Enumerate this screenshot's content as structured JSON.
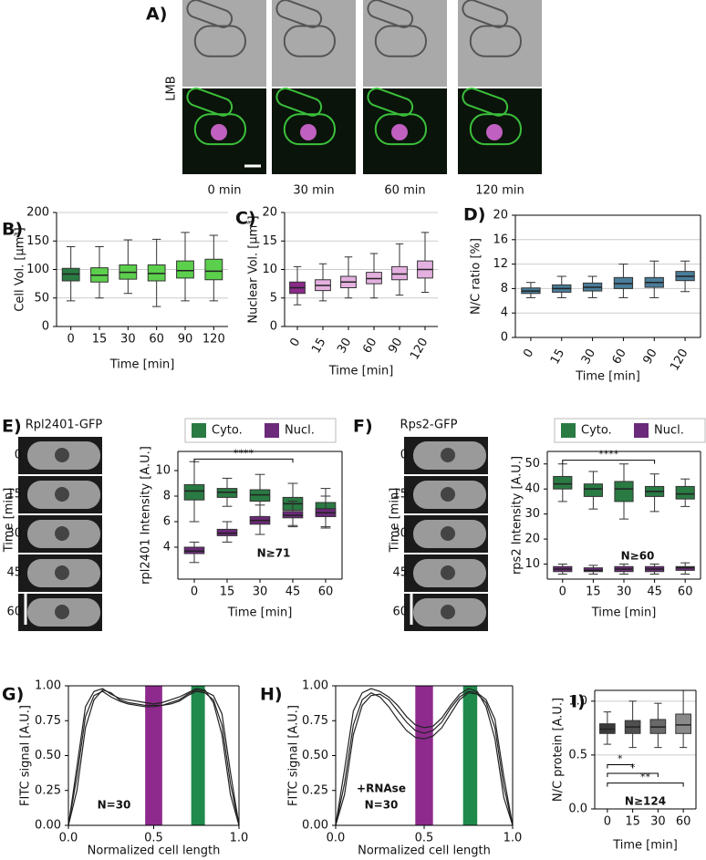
{
  "images": {
    "A": {
      "label": "A)",
      "side": "LMB",
      "times": [
        "0 min",
        "30 min",
        "60 min",
        "120 min"
      ]
    },
    "E": {
      "label": "E)",
      "title": "Rpl2401-GFP",
      "axis": "Time [min]",
      "times": [
        "0",
        "15",
        "30",
        "45",
        "60"
      ]
    },
    "F": {
      "label": "F)",
      "title": "Rps2-GFP",
      "axis": "Time [min]",
      "times": [
        "0",
        "15",
        "30",
        "45",
        "60"
      ]
    }
  },
  "chart_data": [
    {
      "type": "box",
      "panel": "B)",
      "ylabel": "Cell Vol. [μm³]",
      "xlabel": "Time [min]",
      "frame": false,
      "grid": true,
      "categories": [
        "0",
        "15",
        "30",
        "60",
        "90",
        "120"
      ],
      "ylim": [
        0,
        200
      ],
      "yticks": [
        0,
        50,
        100,
        150,
        200
      ],
      "series": [
        {
          "colors": [
            "#2a7a43",
            "#5ccf4c",
            "#5ccf4c",
            "#5ccf4c",
            "#5ccf4c",
            "#5ccf4c"
          ],
          "boxes": [
            {
              "min": 45,
              "q1": 80,
              "median": 92,
              "q3": 102,
              "max": 140
            },
            {
              "min": 50,
              "q1": 78,
              "median": 90,
              "q3": 103,
              "max": 140
            },
            {
              "min": 58,
              "q1": 83,
              "median": 95,
              "q3": 108,
              "max": 152
            },
            {
              "min": 35,
              "q1": 80,
              "median": 93,
              "q3": 108,
              "max": 153
            },
            {
              "min": 45,
              "q1": 85,
              "median": 98,
              "q3": 115,
              "max": 165
            },
            {
              "min": 45,
              "q1": 82,
              "median": 97,
              "q3": 118,
              "max": 160
            }
          ]
        }
      ]
    },
    {
      "type": "box",
      "panel": "C)",
      "ylabel": "Nuclear Vol. [μm³]",
      "xlabel": "Time [min]",
      "frame": false,
      "grid": true,
      "xtick_rotation": -60,
      "categories": [
        "0",
        "15",
        "30",
        "60",
        "90",
        "120"
      ],
      "ylim": [
        0,
        20
      ],
      "yticks": [
        0,
        5,
        10,
        15,
        20
      ],
      "series": [
        {
          "colors": [
            "#8b2a8b",
            "#e4b0e0",
            "#e4b0e0",
            "#e4b0e0",
            "#e4b0e0",
            "#e4b0e0"
          ],
          "boxes": [
            {
              "min": 3.8,
              "q1": 5.8,
              "median": 6.8,
              "q3": 7.8,
              "max": 10.5
            },
            {
              "min": 4.5,
              "q1": 6.3,
              "median": 7.2,
              "q3": 8.2,
              "max": 11
            },
            {
              "min": 5,
              "q1": 6.8,
              "median": 7.8,
              "q3": 8.8,
              "max": 12.2
            },
            {
              "min": 5,
              "q1": 7.5,
              "median": 8.4,
              "q3": 9.5,
              "max": 12.8
            },
            {
              "min": 5.5,
              "q1": 8.2,
              "median": 9.2,
              "q3": 10.5,
              "max": 14.5
            },
            {
              "min": 6,
              "q1": 8.5,
              "median": 10,
              "q3": 11.5,
              "max": 16.5
            }
          ]
        }
      ]
    },
    {
      "type": "box",
      "panel": "D)",
      "ylabel": "N/C ratio [%]",
      "xlabel": "Time [min]",
      "frame": true,
      "grid": true,
      "xtick_rotation": -60,
      "categories": [
        "0",
        "15",
        "30",
        "60",
        "90",
        "120"
      ],
      "ylim": [
        0,
        20
      ],
      "yticks": [
        0,
        4,
        8,
        12,
        16,
        20
      ],
      "series": [
        {
          "color": "#4a7d99",
          "boxes": [
            {
              "min": 6.5,
              "q1": 7.2,
              "median": 7.6,
              "q3": 8.1,
              "max": 9
            },
            {
              "min": 6.5,
              "q1": 7.4,
              "median": 8,
              "q3": 8.6,
              "max": 10
            },
            {
              "min": 6.5,
              "q1": 7.6,
              "median": 8.2,
              "q3": 8.9,
              "max": 10
            },
            {
              "min": 6.5,
              "q1": 8,
              "median": 8.8,
              "q3": 9.8,
              "max": 12
            },
            {
              "min": 6.5,
              "q1": 8.2,
              "median": 9,
              "q3": 9.8,
              "max": 12.5
            },
            {
              "min": 7.5,
              "q1": 9.3,
              "median": 10,
              "q3": 10.8,
              "max": 12.5
            }
          ]
        }
      ]
    },
    {
      "type": "box",
      "ylabel": "rpl2401 Intensity [A.U.]",
      "xlabel": "Time [min]",
      "frame": true,
      "grid": false,
      "notes": [
        "N≥71"
      ],
      "categories": [
        "0",
        "15",
        "30",
        "45",
        "60"
      ],
      "ylim": [
        1.5,
        11.5
      ],
      "yticks": [
        4,
        6,
        8,
        10
      ],
      "brackets": [
        {
          "from": 0,
          "to": 3,
          "y": 10.9,
          "label": "****"
        }
      ],
      "series": [
        {
          "name": "Cyto.",
          "color": "#2a7a43",
          "boxes": [
            {
              "min": 6,
              "q1": 7.7,
              "median": 8.4,
              "q3": 8.9,
              "max": 10.7
            },
            {
              "min": 7.2,
              "q1": 7.9,
              "median": 8.3,
              "q3": 8.6,
              "max": 9.4
            },
            {
              "min": 6.4,
              "q1": 7.6,
              "median": 8.1,
              "q3": 8.5,
              "max": 9.7
            },
            {
              "min": 5.7,
              "q1": 6.9,
              "median": 7.4,
              "q3": 7.9,
              "max": 9
            },
            {
              "min": 5.5,
              "q1": 6.4,
              "median": 7,
              "q3": 7.5,
              "max": 8.6
            }
          ]
        },
        {
          "name": "Nucl.",
          "color": "#6b2a7a",
          "boxes": [
            {
              "min": 2.8,
              "q1": 3.5,
              "median": 3.7,
              "q3": 4,
              "max": 4.4
            },
            {
              "min": 4.4,
              "q1": 4.9,
              "median": 5.1,
              "q3": 5.4,
              "max": 6
            },
            {
              "min": 5,
              "q1": 5.8,
              "median": 6.1,
              "q3": 6.4,
              "max": 7.3
            },
            {
              "min": 5.6,
              "q1": 6.3,
              "median": 6.5,
              "q3": 6.8,
              "max": 7.6
            },
            {
              "min": 5.6,
              "q1": 6.4,
              "median": 6.7,
              "q3": 7,
              "max": 8
            }
          ]
        }
      ]
    },
    {
      "type": "box",
      "ylabel": "rps2 Intensity [A.U.]",
      "xlabel": "Time [min]",
      "frame": true,
      "grid": false,
      "notes": [
        "N≥60"
      ],
      "categories": [
        "0",
        "15",
        "30",
        "45",
        "60"
      ],
      "ylim": [
        4,
        55
      ],
      "yticks": [
        10,
        20,
        30,
        40,
        50
      ],
      "brackets": [
        {
          "from": 0,
          "to": 3,
          "y": 51.5,
          "label": "****"
        }
      ],
      "series": [
        {
          "name": "Cyto.",
          "color": "#2a7a43",
          "boxes": [
            {
              "min": 35,
              "q1": 40,
              "median": 42,
              "q3": 45,
              "max": 50
            },
            {
              "min": 32,
              "q1": 37,
              "median": 40,
              "q3": 42,
              "max": 47
            },
            {
              "min": 28,
              "q1": 35,
              "median": 40,
              "q3": 43,
              "max": 50
            },
            {
              "min": 31,
              "q1": 37,
              "median": 39,
              "q3": 41,
              "max": 46
            },
            {
              "min": 33,
              "q1": 36,
              "median": 38,
              "q3": 41,
              "max": 44
            }
          ]
        },
        {
          "name": "Nucl.",
          "color": "#6b2a7a",
          "boxes": [
            {
              "min": 6,
              "q1": 7,
              "median": 8,
              "q3": 9,
              "max": 10
            },
            {
              "min": 6,
              "q1": 7,
              "median": 7.5,
              "q3": 8.5,
              "max": 9.5
            },
            {
              "min": 6,
              "q1": 7,
              "median": 8,
              "q3": 9,
              "max": 10
            },
            {
              "min": 6,
              "q1": 7,
              "median": 8,
              "q3": 9,
              "max": 10
            },
            {
              "min": 6,
              "q1": 7.5,
              "median": 8.5,
              "q3": 9,
              "max": 10.5
            }
          ]
        }
      ]
    },
    {
      "type": "line",
      "panel": "G)",
      "ylabel": "FITC signal [A.U.]",
      "xlabel": "Normalized cell length",
      "frame": true,
      "notes": [
        "N=30"
      ],
      "xlim": [
        0,
        1
      ],
      "xticks": [
        {
          "value": 0,
          "label": "0.0"
        },
        {
          "value": 0.5,
          "label": "0.5"
        },
        {
          "value": 1,
          "label": "1.0"
        }
      ],
      "ylim": [
        0,
        1
      ],
      "yticks": [
        {
          "value": 0,
          "label": "0.00"
        },
        {
          "value": 0.25,
          "label": "0.25"
        },
        {
          "value": 0.5,
          "label": "0.50"
        },
        {
          "value": 0.75,
          "label": "0.75"
        },
        {
          "value": 1,
          "label": "1.00"
        }
      ],
      "bands": [
        {
          "from": 0.45,
          "to": 0.55,
          "color": "#8e2a8e"
        },
        {
          "from": 0.72,
          "to": 0.8,
          "color": "#1f8a4c"
        }
      ],
      "x": [
        0,
        0.05,
        0.1,
        0.15,
        0.2,
        0.25,
        0.3,
        0.35,
        0.4,
        0.45,
        0.5,
        0.55,
        0.6,
        0.65,
        0.7,
        0.75,
        0.8,
        0.85,
        0.9,
        0.95,
        1
      ],
      "series": [
        {
          "color": "#222222",
          "values": [
            0,
            0.35,
            0.78,
            0.93,
            0.96,
            0.92,
            0.89,
            0.87,
            0.86,
            0.85,
            0.85,
            0.86,
            0.87,
            0.89,
            0.93,
            0.96,
            0.95,
            0.9,
            0.72,
            0.3,
            0
          ]
        },
        {
          "color": "#222222",
          "values": [
            0,
            0.25,
            0.7,
            0.9,
            0.97,
            0.95,
            0.9,
            0.88,
            0.87,
            0.86,
            0.86,
            0.86,
            0.88,
            0.9,
            0.94,
            0.97,
            0.96,
            0.93,
            0.8,
            0.38,
            0
          ]
        },
        {
          "color": "#222222",
          "values": [
            0,
            0.42,
            0.85,
            0.96,
            0.98,
            0.94,
            0.91,
            0.9,
            0.89,
            0.88,
            0.87,
            0.88,
            0.9,
            0.92,
            0.95,
            0.98,
            0.97,
            0.88,
            0.65,
            0.22,
            0
          ]
        }
      ]
    },
    {
      "type": "line",
      "panel": "H)",
      "ylabel": "FITC signal [A.U.]",
      "xlabel": "Normalized cell length",
      "frame": true,
      "notes": [
        "+RNAse",
        "N=30"
      ],
      "xlim": [
        0,
        1
      ],
      "xticks": [
        {
          "value": 0,
          "label": "0.0"
        },
        {
          "value": 0.5,
          "label": "0.5"
        },
        {
          "value": 1,
          "label": "1.0"
        }
      ],
      "ylim": [
        0,
        1
      ],
      "yticks": [
        {
          "value": 0,
          "label": "0.00"
        },
        {
          "value": 0.25,
          "label": "0.25"
        },
        {
          "value": 0.5,
          "label": "0.50"
        },
        {
          "value": 0.75,
          "label": "0.75"
        },
        {
          "value": 1,
          "label": "1.00"
        }
      ],
      "bands": [
        {
          "from": 0.45,
          "to": 0.55,
          "color": "#8e2a8e"
        },
        {
          "from": 0.72,
          "to": 0.8,
          "color": "#1f8a4c"
        }
      ],
      "x": [
        0,
        0.05,
        0.1,
        0.15,
        0.2,
        0.25,
        0.3,
        0.35,
        0.4,
        0.45,
        0.5,
        0.55,
        0.6,
        0.65,
        0.7,
        0.75,
        0.8,
        0.85,
        0.9,
        0.95,
        1
      ],
      "series": [
        {
          "color": "#222222",
          "values": [
            0,
            0.3,
            0.72,
            0.9,
            0.95,
            0.92,
            0.85,
            0.76,
            0.68,
            0.63,
            0.62,
            0.64,
            0.7,
            0.8,
            0.9,
            0.95,
            0.94,
            0.88,
            0.7,
            0.28,
            0
          ]
        },
        {
          "color": "#222222",
          "values": [
            0,
            0.22,
            0.65,
            0.86,
            0.93,
            0.94,
            0.9,
            0.82,
            0.74,
            0.68,
            0.66,
            0.68,
            0.74,
            0.84,
            0.92,
            0.96,
            0.95,
            0.9,
            0.76,
            0.35,
            0
          ]
        },
        {
          "color": "#222222",
          "values": [
            0,
            0.4,
            0.82,
            0.95,
            0.98,
            0.96,
            0.92,
            0.86,
            0.78,
            0.72,
            0.7,
            0.71,
            0.77,
            0.86,
            0.94,
            0.98,
            0.96,
            0.85,
            0.62,
            0.2,
            0
          ]
        }
      ]
    },
    {
      "type": "box",
      "panel": "I)",
      "ylabel": "N/C protein [A.U.]",
      "xlabel": "Time [min]",
      "frame": true,
      "grid": true,
      "notes": [
        "N≥124"
      ],
      "categories": [
        "0",
        "15",
        "30",
        "60"
      ],
      "ylim": [
        0,
        1.1
      ],
      "yticks": [
        {
          "value": 0,
          "label": "0.0"
        },
        {
          "value": 0.5,
          "label": "0.5"
        },
        {
          "value": 1,
          "label": "1.0"
        }
      ],
      "brackets": [
        {
          "from": 0,
          "to": 1,
          "y": 0.41,
          "label": "*"
        },
        {
          "from": 0,
          "to": 2,
          "y": 0.33,
          "label": "*"
        },
        {
          "from": 0,
          "to": 3,
          "y": 0.24,
          "label": "**"
        }
      ],
      "series": [
        {
          "colors": [
            "#3a3a3a",
            "#505050",
            "#6a6a6a",
            "#8a8a8a"
          ],
          "boxes": [
            {
              "min": 0.6,
              "q1": 0.7,
              "median": 0.74,
              "q3": 0.79,
              "max": 0.9
            },
            {
              "min": 0.57,
              "q1": 0.7,
              "median": 0.76,
              "q3": 0.82,
              "max": 1.0
            },
            {
              "min": 0.57,
              "q1": 0.7,
              "median": 0.76,
              "q3": 0.83,
              "max": 0.98
            },
            {
              "min": 0.57,
              "q1": 0.7,
              "median": 0.78,
              "q3": 0.88,
              "max": 1.1
            }
          ]
        }
      ]
    }
  ]
}
